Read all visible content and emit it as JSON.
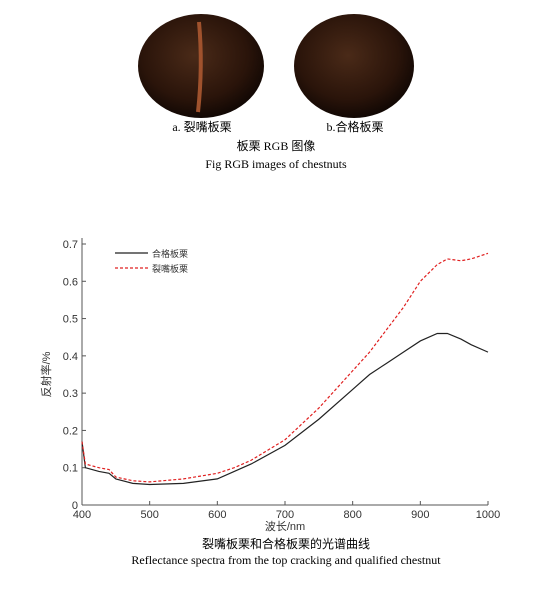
{
  "images": {
    "labels": [
      "a. 裂嘴板栗",
      "b.合格板栗"
    ],
    "caption_cn": "板栗 RGB 图像",
    "caption_en": "Fig RGB images of chestnuts"
  },
  "chart_data": {
    "type": "line",
    "xlabel": "波长/nm",
    "ylabel": "反射率/%",
    "x": [
      400,
      405,
      425,
      440,
      450,
      475,
      500,
      550,
      600,
      625,
      650,
      700,
      750,
      800,
      825,
      850,
      875,
      900,
      925,
      940,
      960,
      975,
      1000
    ],
    "series": [
      {
        "name": "合格板栗",
        "color": "#222222",
        "dash": false,
        "values": [
          0.17,
          0.1,
          0.09,
          0.085,
          0.07,
          0.058,
          0.055,
          0.058,
          0.07,
          0.09,
          0.11,
          0.16,
          0.23,
          0.31,
          0.35,
          0.38,
          0.41,
          0.44,
          0.46,
          0.46,
          0.445,
          0.43,
          0.41
        ]
      },
      {
        "name": "裂嘴板栗",
        "color": "#e02020",
        "dash": true,
        "values": [
          0.17,
          0.11,
          0.1,
          0.095,
          0.075,
          0.065,
          0.062,
          0.07,
          0.085,
          0.1,
          0.12,
          0.175,
          0.26,
          0.36,
          0.41,
          0.47,
          0.53,
          0.6,
          0.645,
          0.66,
          0.655,
          0.66,
          0.675
        ]
      }
    ],
    "xlim": [
      400,
      1000
    ],
    "xticks": [
      400,
      500,
      600,
      700,
      800,
      900,
      1000
    ],
    "ylim": [
      0,
      0.7
    ],
    "yticks": [
      0,
      0.1,
      0.2,
      0.3,
      0.4,
      0.5,
      0.6,
      0.7
    ]
  },
  "chart_caption": {
    "cn": "裂嘴板栗和合格板栗的光谱曲线",
    "en": "Reflectance spectra from the top cracking and qualified chestnut"
  }
}
